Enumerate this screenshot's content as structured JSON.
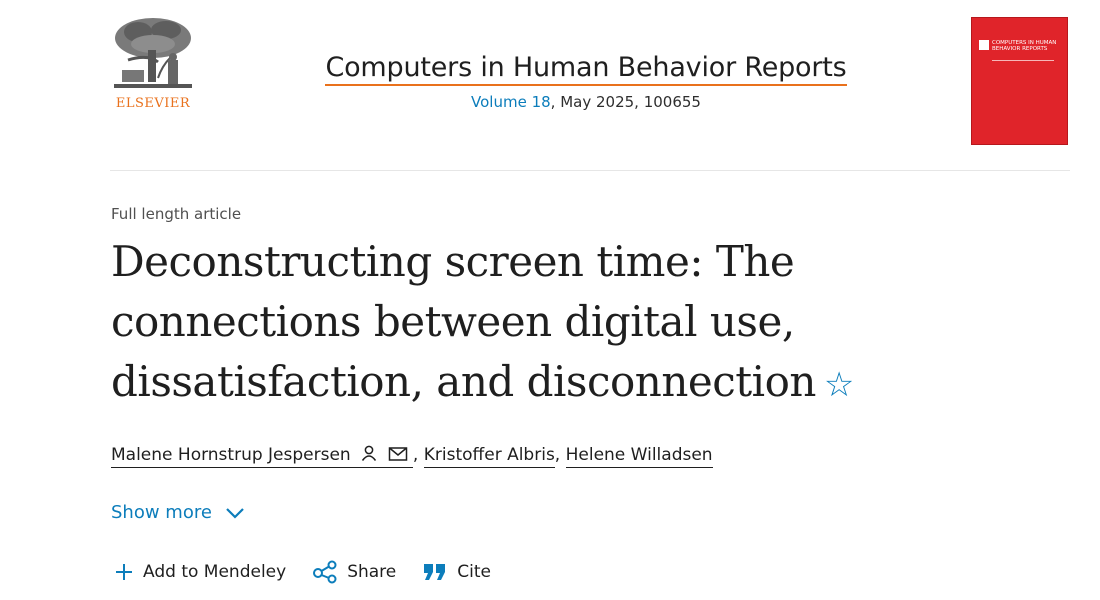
{
  "publisher": {
    "name": "ELSEVIER",
    "logo_icon": "elsevier-tree-icon"
  },
  "journal": {
    "title": "Computers in Human Behavior Reports",
    "volume_link": "Volume 18",
    "issue_rest": ", May 2025, 100655"
  },
  "cover": {
    "text": "COMPUTERS IN HUMAN BEHAVIOR REPORTS",
    "color": "#e0242a"
  },
  "article": {
    "type": "Full length article",
    "title": "Deconstructing screen time: The connections between digital use, dissatisfaction, and disconnection",
    "star_icon": "star-outline-icon"
  },
  "authors": [
    {
      "name": "Malene Hornstrup Jespersen",
      "icons": [
        "person-icon",
        "mail-icon"
      ]
    },
    {
      "name": "Kristoffer Albris"
    },
    {
      "name": "Helene Willadsen"
    }
  ],
  "separator": ",",
  "show_more": {
    "label": "Show more",
    "icon": "chevron-down-icon"
  },
  "actions": [
    {
      "label": "Add to Mendeley",
      "icon": "plus-icon"
    },
    {
      "label": "Share",
      "icon": "share-icon"
    },
    {
      "label": "Cite",
      "icon": "quote-icon"
    }
  ],
  "colors": {
    "accent": "#0c7dbb",
    "brand_orange": "#e9711c",
    "text": "#1f1f1f"
  }
}
